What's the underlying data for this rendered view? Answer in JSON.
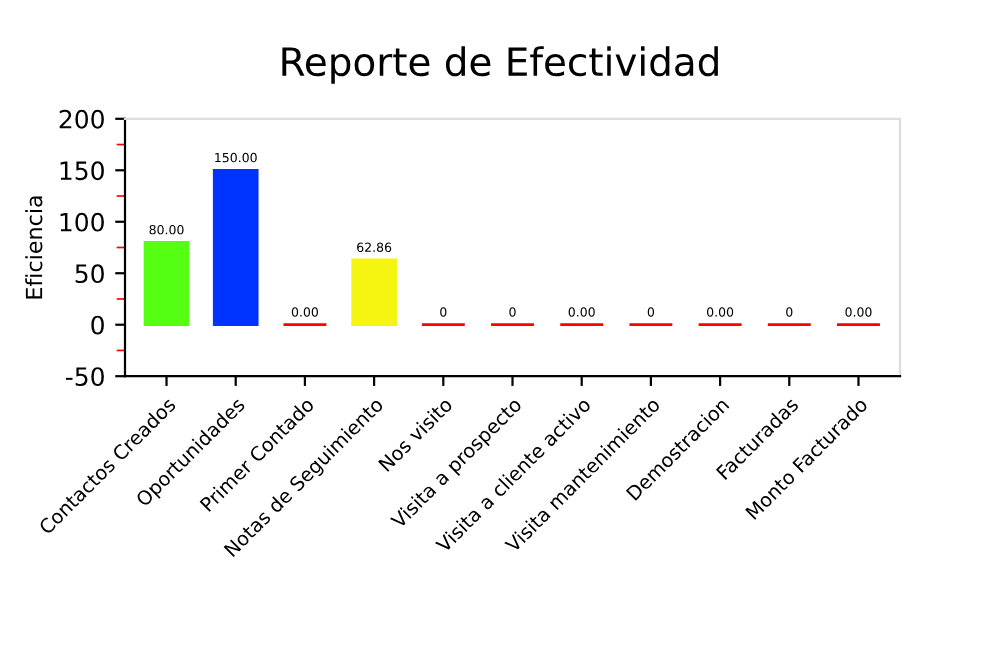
{
  "chart_data": {
    "type": "bar",
    "title": "Reporte de Efectividad",
    "ylabel": "Eficiencia",
    "categories": [
      "Contactos Creados",
      "Oportunidades",
      "Primer Contado",
      "Notas de Seguimiento",
      "Nos visito",
      "Visita a prospecto",
      "Visita a cliente activo",
      "Visita mantenimiento",
      "Demostracion",
      "Facturadas",
      "Monto Facturado"
    ],
    "values": [
      80,
      150,
      0,
      62.86,
      0,
      0,
      0,
      0,
      0,
      0,
      0
    ],
    "value_labels": [
      "80.00",
      "150.00",
      "0.00",
      "62.86",
      "0",
      "0",
      "0.00",
      "0",
      "0.00",
      "0",
      "0.00"
    ],
    "colors": [
      "#55ff11",
      "#0033ff",
      "#ff0000",
      "#f5f511",
      "#ff0000",
      "#ff0000",
      "#ff0000",
      "#ff0000",
      "#ff0000",
      "#ff0000",
      "#ff0000"
    ],
    "ylim": [
      -50,
      200
    ],
    "yticks": [
      -50,
      0,
      50,
      100,
      150,
      200
    ],
    "grid": false
  }
}
